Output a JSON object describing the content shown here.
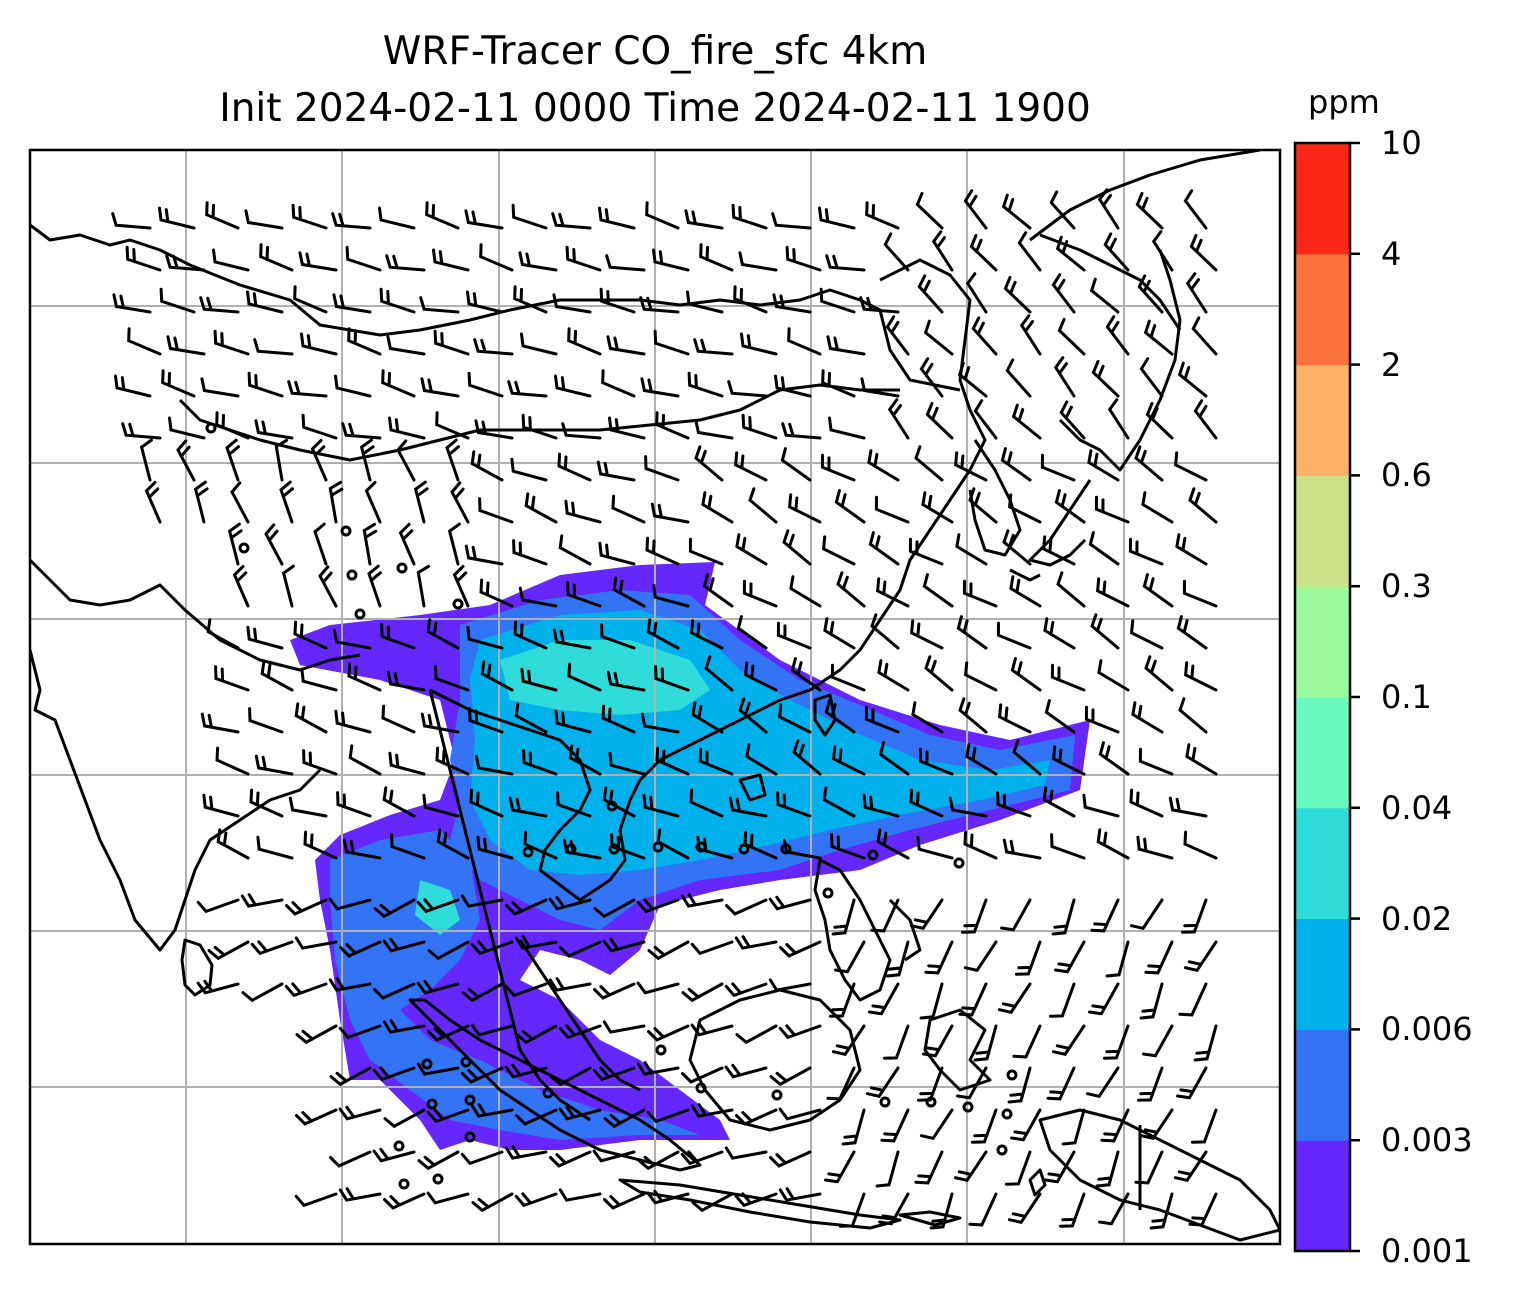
{
  "title_line1": "WRF-Tracer CO_fire_sfc 4km",
  "title_line2": "Init 2024-02-11 0000 Time 2024-02-11 1900",
  "colorbar": {
    "unit": "ppm",
    "ticks": [
      "0.001",
      "0.003",
      "0.006",
      "0.02",
      "0.04",
      "0.1",
      "0.3",
      "0.6",
      "2",
      "4",
      "10"
    ],
    "colors": [
      "#6527fb",
      "#3373f6",
      "#00b1ec",
      "#2fdcd9",
      "#68fac0",
      "#9cfa9c",
      "#cde187",
      "#fdb067",
      "#fd7340",
      "#fd2717"
    ]
  },
  "map": {
    "gridlines": true,
    "gridline_color": "#b0b0b0",
    "coastline_color": "#000000",
    "field": "CO_fire_sfc",
    "overlay": "wind barbs"
  }
}
